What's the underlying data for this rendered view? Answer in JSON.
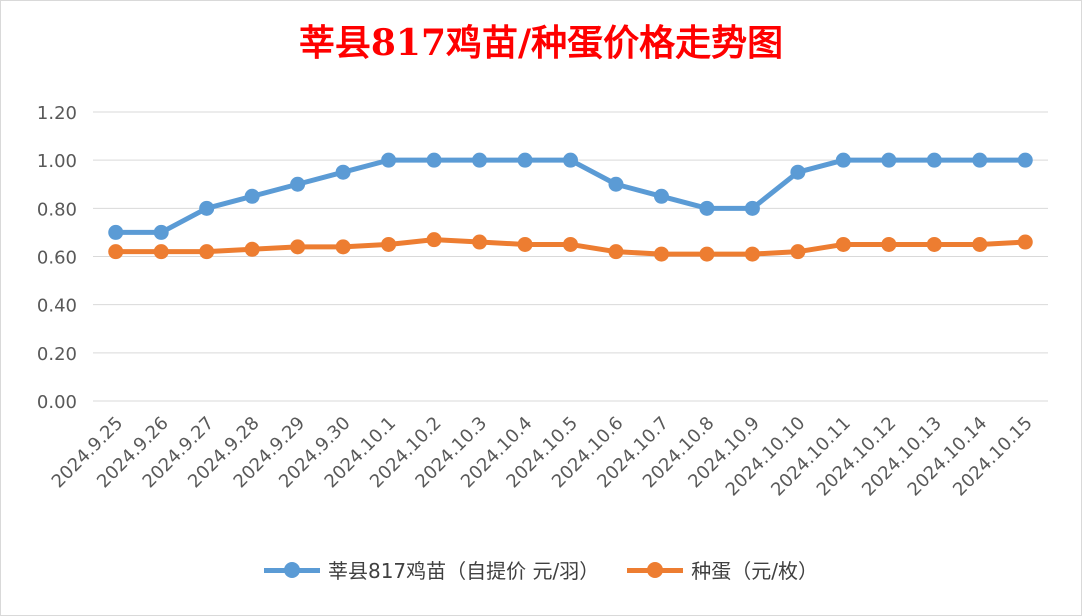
{
  "chart_data": {
    "type": "line",
    "title": "莘县817鸡苗/种蛋价格走势图",
    "categories": [
      "2024.9.25",
      "2024.9.26",
      "2024.9.27",
      "2024.9.28",
      "2024.9.29",
      "2024.9.30",
      "2024.10.1",
      "2024.10.2",
      "2024.10.3",
      "2024.10.4",
      "2024.10.5",
      "2024.10.6",
      "2024.10.7",
      "2024.10.8",
      "2024.10.9",
      "2024.10.10",
      "2024.10.11",
      "2024.10.12",
      "2024.10.13",
      "2024.10.14",
      "2024.10.15"
    ],
    "series": [
      {
        "name": "莘县817鸡苗（自提价 元/羽）",
        "color": "#5b9bd5",
        "values": [
          0.7,
          0.7,
          0.8,
          0.85,
          0.9,
          0.95,
          1.0,
          1.0,
          1.0,
          1.0,
          1.0,
          0.9,
          0.85,
          0.8,
          0.8,
          0.95,
          1.0,
          1.0,
          1.0,
          1.0,
          1.0
        ]
      },
      {
        "name": "种蛋（元/枚）",
        "color": "#ed7d31",
        "values": [
          0.62,
          0.62,
          0.62,
          0.63,
          0.64,
          0.64,
          0.65,
          0.67,
          0.66,
          0.65,
          0.65,
          0.62,
          0.61,
          0.61,
          0.61,
          0.62,
          0.65,
          0.65,
          0.65,
          0.65,
          0.66
        ]
      }
    ],
    "yticks": [
      "0.00",
      "0.20",
      "0.40",
      "0.60",
      "0.80",
      "1.00",
      "1.20"
    ],
    "ylim": [
      0,
      1.2
    ],
    "grid": true,
    "legend_position": "bottom"
  }
}
